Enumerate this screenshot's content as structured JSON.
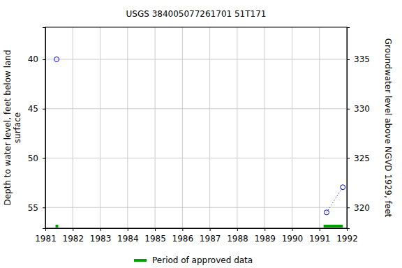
{
  "chart_data": {
    "type": "scatter",
    "title": "USGS 384005077261701 51T171",
    "y_label": "Depth to water level, feet below land\nsurface",
    "y2_label": "Groundwater level above NGVD 1929, feet",
    "xlim": [
      1981,
      1992
    ],
    "xticks": [
      1981,
      1982,
      1983,
      1984,
      1985,
      1986,
      1987,
      1988,
      1989,
      1990,
      1991,
      1992
    ],
    "ylim": [
      36.75,
      57.1
    ],
    "yticks": [
      40,
      45,
      50,
      55
    ],
    "y2lim": [
      338.25,
      317.9
    ],
    "y2ticks": [
      320,
      325,
      330,
      335
    ],
    "grid": true,
    "legend": "bottom",
    "series": [
      {
        "x": [
          1981.41
        ],
        "values": [
          40
        ],
        "color": "#0000ff",
        "marker": "circle",
        "line_style": "dotted"
      },
      {
        "x": [
          1991.26,
          1991.85
        ],
        "values": [
          55.5,
          52.95
        ],
        "color": "#0000ff",
        "marker": "circle",
        "line_style": "dotted"
      },
      {
        "name": "Period of approved data",
        "type": "period",
        "color": "#00a000",
        "x": [
          [
            1981.37,
            1981.47
          ],
          [
            1991.15,
            1991.85
          ]
        ]
      }
    ]
  }
}
